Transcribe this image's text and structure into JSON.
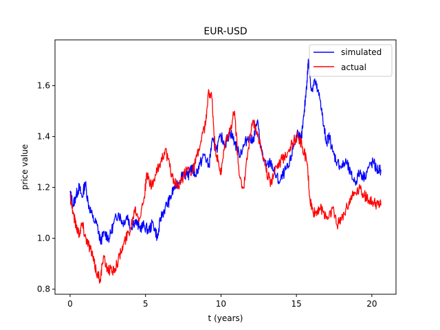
{
  "chart_data": {
    "type": "line",
    "title": "EUR-USD",
    "xlabel": "t (years)",
    "ylabel": "price value",
    "xlim": [
      -1.0,
      21.6
    ],
    "ylim": [
      0.78,
      1.78
    ],
    "xticks": [
      0,
      5,
      10,
      15,
      20
    ],
    "yticks": [
      0.8,
      1.0,
      1.2,
      1.4,
      1.6
    ],
    "grid": false,
    "legend_position": "top-right",
    "series": [
      {
        "name": "simulated",
        "color": "#0000ff",
        "x": [
          0.0,
          0.2,
          0.4,
          0.6,
          0.8,
          1.0,
          1.2,
          1.5,
          1.8,
          2.0,
          2.3,
          2.6,
          2.9,
          3.2,
          3.5,
          3.8,
          4.0,
          4.3,
          4.6,
          4.9,
          5.2,
          5.5,
          5.8,
          6.0,
          6.3,
          6.6,
          6.9,
          7.2,
          7.5,
          7.8,
          8.0,
          8.3,
          8.6,
          8.9,
          9.2,
          9.4,
          9.7,
          10.0,
          10.3,
          10.6,
          10.9,
          11.2,
          11.5,
          11.8,
          12.1,
          12.4,
          12.7,
          13.0,
          13.3,
          13.6,
          13.9,
          14.2,
          14.5,
          14.8,
          15.1,
          15.3,
          15.5,
          15.7,
          15.8,
          16.0,
          16.2,
          16.4,
          16.6,
          16.8,
          17.0,
          17.2,
          17.4,
          17.7,
          18.0,
          18.3,
          18.6,
          18.9,
          19.2,
          19.5,
          19.8,
          20.1,
          20.3,
          20.6
        ],
        "y": [
          1.18,
          1.13,
          1.17,
          1.2,
          1.16,
          1.22,
          1.14,
          1.08,
          1.05,
          0.99,
          1.02,
          1.0,
          1.06,
          1.1,
          1.06,
          1.09,
          1.04,
          1.07,
          1.04,
          1.05,
          1.03,
          1.06,
          1.0,
          1.08,
          1.12,
          1.15,
          1.2,
          1.22,
          1.26,
          1.24,
          1.28,
          1.25,
          1.29,
          1.33,
          1.28,
          1.38,
          1.35,
          1.4,
          1.37,
          1.42,
          1.38,
          1.33,
          1.36,
          1.4,
          1.38,
          1.46,
          1.34,
          1.28,
          1.3,
          1.25,
          1.22,
          1.26,
          1.28,
          1.36,
          1.42,
          1.38,
          1.48,
          1.62,
          1.7,
          1.58,
          1.62,
          1.58,
          1.54,
          1.44,
          1.38,
          1.4,
          1.34,
          1.3,
          1.28,
          1.3,
          1.25,
          1.22,
          1.26,
          1.24,
          1.28,
          1.3,
          1.27,
          1.27
        ]
      },
      {
        "name": "actual",
        "color": "#ff0000",
        "x": [
          0.0,
          0.2,
          0.4,
          0.6,
          0.8,
          1.0,
          1.2,
          1.4,
          1.6,
          1.8,
          2.0,
          2.2,
          2.5,
          2.8,
          3.1,
          3.4,
          3.7,
          4.0,
          4.3,
          4.6,
          4.9,
          5.1,
          5.4,
          5.7,
          6.0,
          6.3,
          6.6,
          6.9,
          7.2,
          7.5,
          7.8,
          8.1,
          8.4,
          8.7,
          9.0,
          9.2,
          9.4,
          9.6,
          9.8,
          10.0,
          10.3,
          10.6,
          10.9,
          11.2,
          11.5,
          11.8,
          12.1,
          12.4,
          12.7,
          13.0,
          13.3,
          13.6,
          13.9,
          14.2,
          14.5,
          14.8,
          15.1,
          15.4,
          15.7,
          15.9,
          16.1,
          16.3,
          16.5,
          16.8,
          17.1,
          17.4,
          17.7,
          18.0,
          18.3,
          18.6,
          18.9,
          19.2,
          19.5,
          19.8,
          20.1,
          20.4,
          20.6
        ],
        "y": [
          1.17,
          1.1,
          1.05,
          1.02,
          1.06,
          1.01,
          0.98,
          0.95,
          0.9,
          0.86,
          0.84,
          0.92,
          0.88,
          0.87,
          0.9,
          0.95,
          1.0,
          1.04,
          1.12,
          1.08,
          1.16,
          1.25,
          1.2,
          1.25,
          1.3,
          1.35,
          1.28,
          1.22,
          1.2,
          1.24,
          1.28,
          1.26,
          1.32,
          1.38,
          1.46,
          1.58,
          1.55,
          1.36,
          1.3,
          1.25,
          1.38,
          1.42,
          1.5,
          1.25,
          1.2,
          1.35,
          1.46,
          1.42,
          1.35,
          1.26,
          1.22,
          1.28,
          1.3,
          1.32,
          1.35,
          1.38,
          1.4,
          1.36,
          1.3,
          1.15,
          1.1,
          1.1,
          1.12,
          1.1,
          1.08,
          1.12,
          1.05,
          1.08,
          1.12,
          1.16,
          1.18,
          1.2,
          1.17,
          1.15,
          1.14,
          1.13,
          1.13
        ]
      }
    ]
  }
}
